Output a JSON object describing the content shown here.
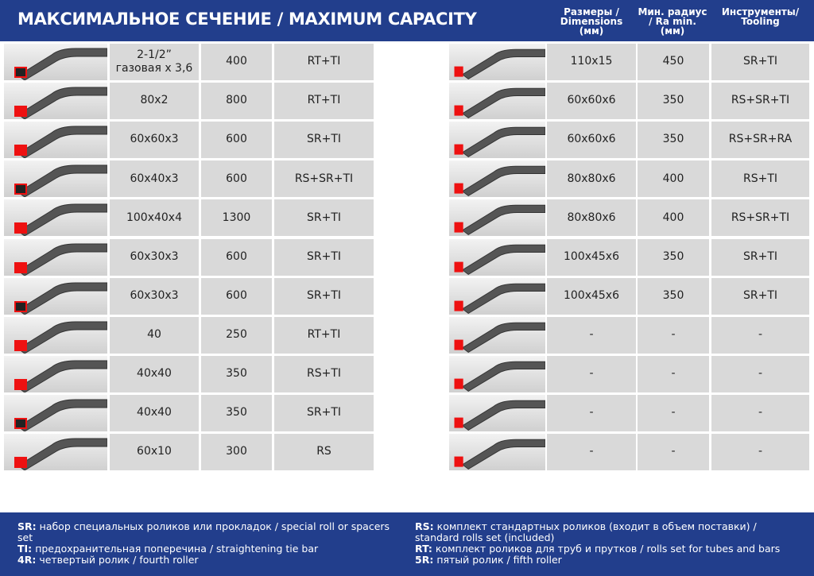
{
  "header": {
    "title": "МАКСИМАЛЬНОЕ СЕЧЕНИЕ /  MAXIMUM CAPACITY",
    "columns": [
      {
        "lines": [
          "Размеры /",
          "Dimensions",
          "(мм)"
        ]
      },
      {
        "lines": [
          "Мин. радиус",
          "/ Ra min.",
          "(мм)"
        ]
      },
      {
        "lines": [
          "Инструменты/",
          "Tooling"
        ]
      }
    ]
  },
  "left_rows": [
    {
      "dimensions": "2-1/2” газовая х 3,6",
      "radius": "400",
      "tooling": "RT+TI"
    },
    {
      "dimensions": "80x2",
      "radius": "800",
      "tooling": "RT+TI"
    },
    {
      "dimensions": "60x60x3",
      "radius": "600",
      "tooling": "SR+TI"
    },
    {
      "dimensions": "60x40x3",
      "radius": "600",
      "tooling": "RS+SR+TI"
    },
    {
      "dimensions": "100x40x4",
      "radius": "1300",
      "tooling": "SR+TI"
    },
    {
      "dimensions": "60x30x3",
      "radius": "600",
      "tooling": "SR+TI"
    },
    {
      "dimensions": "60x30x3",
      "radius": "600",
      "tooling": "SR+TI"
    },
    {
      "dimensions": "40",
      "radius": "250",
      "tooling": "RT+TI"
    },
    {
      "dimensions": "40x40",
      "radius": "350",
      "tooling": "RS+TI"
    },
    {
      "dimensions": "40x40",
      "radius": "350",
      "tooling": "SR+TI"
    },
    {
      "dimensions": "60x10",
      "radius": "300",
      "tooling": "RS"
    }
  ],
  "right_rows": [
    {
      "dimensions": "110x15",
      "radius": "450",
      "tooling": "SR+TI"
    },
    {
      "dimensions": "60x60x6",
      "radius": "350",
      "tooling": "RS+SR+TI"
    },
    {
      "dimensions": "60x60x6",
      "radius": "350",
      "tooling": "RS+SR+RA"
    },
    {
      "dimensions": "80x80x6",
      "radius": "400",
      "tooling": "RS+TI"
    },
    {
      "dimensions": "80x80x6",
      "radius": "400",
      "tooling": "RS+SR+TI"
    },
    {
      "dimensions": "100x45x6",
      "radius": "350",
      "tooling": "SR+TI"
    },
    {
      "dimensions": "100x45x6",
      "radius": "350",
      "tooling": "SR+TI"
    },
    {
      "dimensions": "-",
      "radius": "-",
      "tooling": "-"
    },
    {
      "dimensions": "-",
      "radius": "-",
      "tooling": "-"
    },
    {
      "dimensions": "-",
      "radius": "-",
      "tooling": "-"
    },
    {
      "dimensions": "-",
      "radius": "-",
      "tooling": "-"
    }
  ],
  "legend": {
    "left": [
      {
        "abbr": "SR:",
        "text": "набор специальных роликов или прокладок / special roll or spacers set"
      },
      {
        "abbr": "TI:",
        "text": "предохранительная поперечина / straightening tie bar"
      },
      {
        "abbr": "4R:",
        "text": "четвертый ролик / fourth roller"
      }
    ],
    "right": [
      {
        "abbr": "RS:",
        "text": "комплект стандартных роликов (входит в объем поставки) / standard rolls set (included)"
      },
      {
        "abbr": "RT:",
        "text": "комплект роликов для труб и прутков / rolls set for tubes and bars"
      },
      {
        "abbr": "5R:",
        "text": "пятый ролик / fifth roller"
      }
    ]
  }
}
